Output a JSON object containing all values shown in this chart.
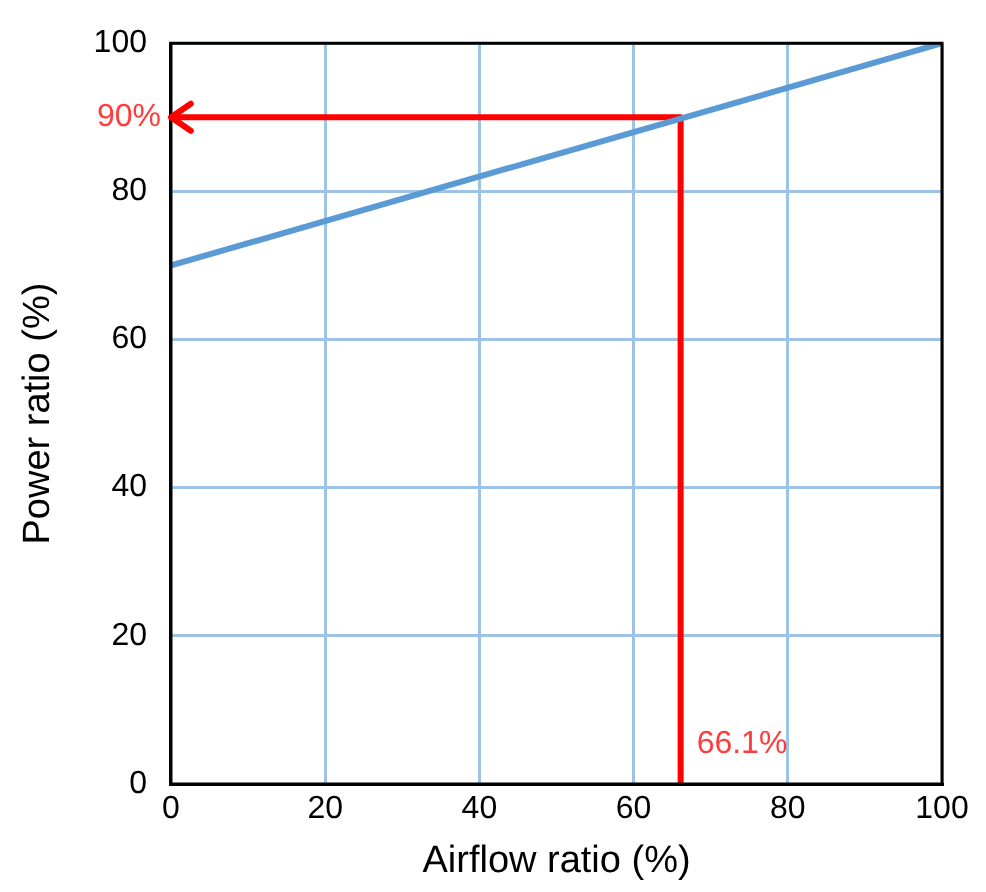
{
  "chart_data": {
    "type": "line",
    "xlabel": "Airflow ratio (%)",
    "ylabel": "Power ratio (%)",
    "xlim": [
      0,
      100
    ],
    "ylim": [
      0,
      100
    ],
    "xticks": [
      0,
      20,
      40,
      60,
      80,
      100
    ],
    "yticks": [
      0,
      20,
      40,
      60,
      80,
      100
    ],
    "grid": true,
    "legend": false,
    "marker": "none",
    "line_style": "solid",
    "series": [
      {
        "color": "#5b9bd5",
        "x": [
          0,
          100
        ],
        "values": [
          70,
          100
        ]
      },
      {
        "color": "#ff0000",
        "x": [
          0,
          66.1,
          66.1
        ],
        "values": [
          90,
          90,
          0
        ]
      }
    ],
    "annotations": [
      {
        "text": "90%",
        "x": 0,
        "y": 90
      },
      {
        "text": "66.1%",
        "x": 66.1,
        "y": 0
      }
    ]
  }
}
